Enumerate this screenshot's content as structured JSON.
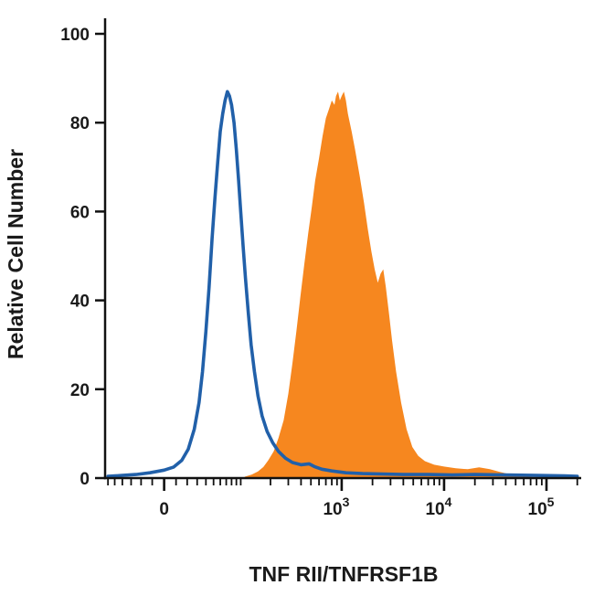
{
  "chart_data": {
    "type": "area",
    "chart_kind": "flow-cytometry-histogram",
    "title": "",
    "xlabel": "TNF RII/TNFRSF1B",
    "ylabel": "Relative Cell Number",
    "ylim": [
      0,
      100
    ],
    "grid": false,
    "legend": "none",
    "y_ticks": [
      0,
      20,
      40,
      60,
      80,
      100
    ],
    "x_scale": {
      "type": "logicle",
      "zero_fraction": 0.124,
      "fraction_per_decade": 0.0934,
      "linear_width": 36.9,
      "range": [
        -65,
        200000
      ]
    },
    "x_ticks": [
      {
        "value": 0,
        "label": "0",
        "sup": ""
      },
      {
        "value": 1000,
        "label": "10",
        "sup": "3"
      },
      {
        "value": 10000,
        "label": "10",
        "sup": "4"
      },
      {
        "value": 100000,
        "label": "10",
        "sup": "5"
      }
    ],
    "x_minor_ticks": [
      -60,
      -50,
      -40,
      -30,
      -20,
      -10,
      10,
      20,
      30,
      40,
      50,
      60,
      70,
      80,
      90,
      100,
      200,
      300,
      400,
      500,
      600,
      700,
      800,
      900,
      2000,
      3000,
      4000,
      5000,
      6000,
      7000,
      8000,
      9000,
      20000,
      30000,
      40000,
      50000,
      60000,
      70000,
      80000,
      90000,
      200000
    ],
    "series": [
      {
        "name": "filled-histogram",
        "style": "filled",
        "color": "#f6871f",
        "peak": {
          "x": 950,
          "y": 87
        },
        "points": [
          [
            110,
            0.3
          ],
          [
            130,
            0.8
          ],
          [
            150,
            1.5
          ],
          [
            170,
            2.5
          ],
          [
            190,
            4
          ],
          [
            215,
            6
          ],
          [
            240,
            9
          ],
          [
            270,
            13
          ],
          [
            300,
            19
          ],
          [
            330,
            26
          ],
          [
            360,
            33
          ],
          [
            395,
            41
          ],
          [
            430,
            48
          ],
          [
            470,
            55
          ],
          [
            510,
            61
          ],
          [
            550,
            67
          ],
          [
            600,
            72
          ],
          [
            650,
            77
          ],
          [
            700,
            81
          ],
          [
            750,
            83
          ],
          [
            800,
            85
          ],
          [
            850,
            84
          ],
          [
            880,
            86
          ],
          [
            920,
            87
          ],
          [
            960,
            85
          ],
          [
            1000,
            86
          ],
          [
            1050,
            87
          ],
          [
            1100,
            85
          ],
          [
            1150,
            82
          ],
          [
            1250,
            78
          ],
          [
            1350,
            74
          ],
          [
            1500,
            68
          ],
          [
            1650,
            62
          ],
          [
            1800,
            56
          ],
          [
            1950,
            51
          ],
          [
            2100,
            47
          ],
          [
            2250,
            44
          ],
          [
            2400,
            46
          ],
          [
            2550,
            47
          ],
          [
            2700,
            43
          ],
          [
            2900,
            37
          ],
          [
            3100,
            31
          ],
          [
            3400,
            24
          ],
          [
            3800,
            17
          ],
          [
            4300,
            11
          ],
          [
            4900,
            7
          ],
          [
            5600,
            5
          ],
          [
            6500,
            3.8
          ],
          [
            8000,
            3
          ],
          [
            10000,
            2.6
          ],
          [
            13000,
            2.2
          ],
          [
            17000,
            2
          ],
          [
            22000,
            2.4
          ],
          [
            28000,
            2
          ],
          [
            35000,
            1.4
          ],
          [
            45000,
            0.8
          ],
          [
            60000,
            0.4
          ],
          [
            80000,
            0.15
          ]
        ]
      },
      {
        "name": "open-histogram",
        "style": "line",
        "color": "#2160a9",
        "peak": {
          "x": 72,
          "y": 87
        },
        "points": [
          [
            -60,
            0.4
          ],
          [
            -40,
            0.6
          ],
          [
            -25,
            0.8
          ],
          [
            -12,
            1.2
          ],
          [
            0,
            1.8
          ],
          [
            8,
            2.5
          ],
          [
            15,
            4
          ],
          [
            21,
            6.5
          ],
          [
            27,
            11
          ],
          [
            32,
            17
          ],
          [
            36,
            24
          ],
          [
            40,
            33
          ],
          [
            44,
            43
          ],
          [
            48,
            54
          ],
          [
            52,
            63
          ],
          [
            56,
            71
          ],
          [
            60,
            78
          ],
          [
            64,
            82
          ],
          [
            68,
            85
          ],
          [
            72,
            87
          ],
          [
            76,
            86
          ],
          [
            80,
            84
          ],
          [
            85,
            80
          ],
          [
            90,
            74
          ],
          [
            95,
            67
          ],
          [
            100,
            60
          ],
          [
            106,
            52
          ],
          [
            112,
            45
          ],
          [
            120,
            37
          ],
          [
            128,
            30
          ],
          [
            138,
            24
          ],
          [
            150,
            18.5
          ],
          [
            165,
            14
          ],
          [
            185,
            10.5
          ],
          [
            210,
            8
          ],
          [
            240,
            6
          ],
          [
            280,
            4.5
          ],
          [
            330,
            3.5
          ],
          [
            400,
            3
          ],
          [
            480,
            3.2
          ],
          [
            540,
            2.6
          ],
          [
            640,
            2
          ],
          [
            800,
            1.6
          ],
          [
            1100,
            1.2
          ],
          [
            1600,
            1
          ],
          [
            2500,
            0.9
          ],
          [
            4000,
            0.8
          ],
          [
            7000,
            0.8
          ],
          [
            12000,
            0.7
          ],
          [
            20000,
            0.8
          ],
          [
            40000,
            0.7
          ],
          [
            80000,
            0.6
          ],
          [
            150000,
            0.5
          ],
          [
            200000,
            0.4
          ]
        ]
      }
    ]
  },
  "colors": {
    "axis": "#111111",
    "text": "#1a1a1a",
    "background": "#ffffff"
  }
}
